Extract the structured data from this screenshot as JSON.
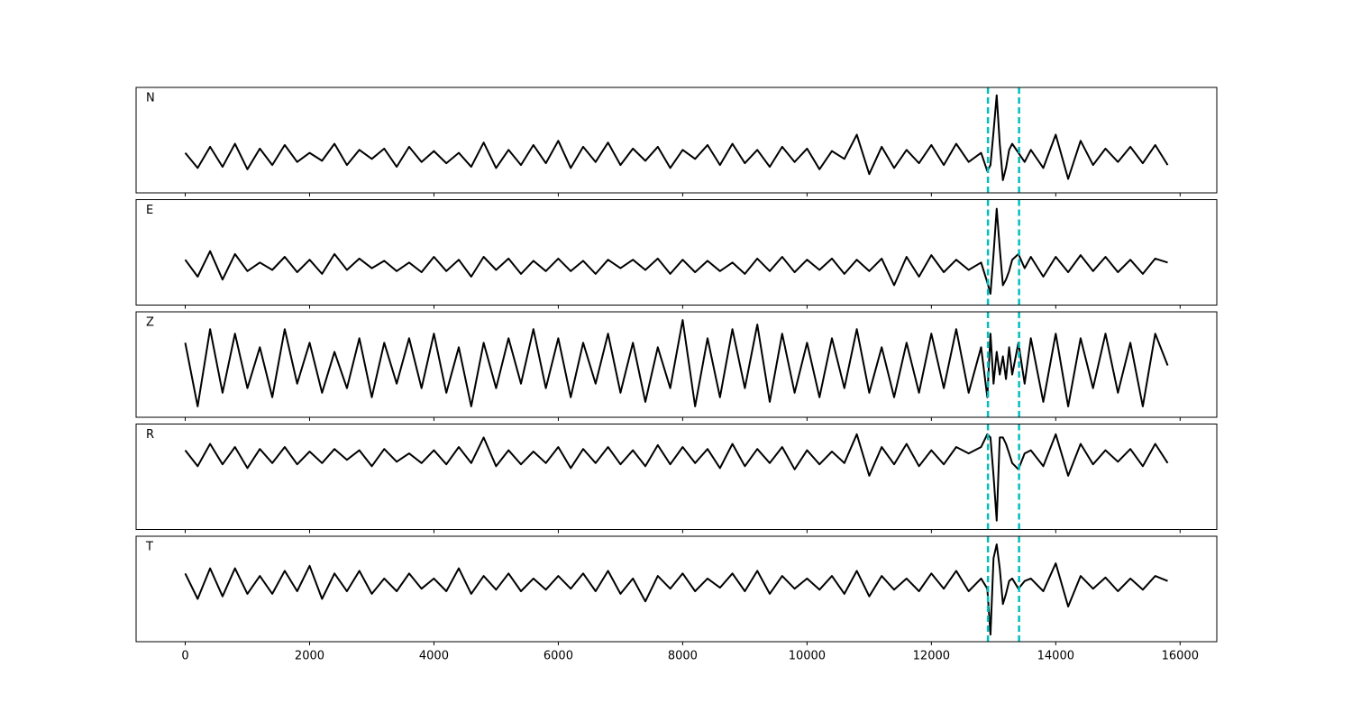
{
  "chart_data": [
    {
      "type": "line",
      "label": "N",
      "color": "#000000",
      "vline_color": "#00bfbf",
      "vlines": [
        12910,
        13410
      ],
      "xlim": [
        -790,
        16590
      ],
      "ylim": [
        -0.61,
        1.13
      ],
      "xticks": [
        0,
        2000,
        4000,
        6000,
        8000,
        10000,
        12000,
        14000,
        16000
      ],
      "x": [
        0,
        200,
        400,
        600,
        800,
        1000,
        1200,
        1400,
        1600,
        1800,
        2000,
        2200,
        2400,
        2600,
        2800,
        3000,
        3200,
        3400,
        3600,
        3800,
        4000,
        4200,
        4400,
        4600,
        4800,
        5000,
        5200,
        5400,
        5600,
        5800,
        6000,
        6200,
        6400,
        6600,
        6800,
        7000,
        7200,
        7400,
        7600,
        7800,
        8000,
        8200,
        8400,
        8600,
        8800,
        9000,
        9200,
        9400,
        9600,
        9800,
        10000,
        10200,
        10400,
        10600,
        10800,
        11000,
        11200,
        11400,
        11600,
        11800,
        12000,
        12200,
        12400,
        12600,
        12800,
        12900,
        12950,
        13000,
        13050,
        13100,
        13150,
        13200,
        13250,
        13300,
        13400,
        13500,
        13600,
        13800,
        14000,
        14200,
        14400,
        14600,
        14800,
        15000,
        15200,
        15400,
        15600,
        15800
      ],
      "values": [
        0.05,
        -0.2,
        0.15,
        -0.18,
        0.2,
        -0.22,
        0.12,
        -0.15,
        0.18,
        -0.1,
        0.05,
        -0.08,
        0.2,
        -0.15,
        0.1,
        -0.05,
        0.12,
        -0.18,
        0.15,
        -0.1,
        0.08,
        -0.12,
        0.05,
        -0.18,
        0.22,
        -0.2,
        0.1,
        -0.15,
        0.18,
        -0.12,
        0.25,
        -0.2,
        0.15,
        -0.1,
        0.22,
        -0.15,
        0.12,
        -0.08,
        0.15,
        -0.2,
        0.1,
        -0.05,
        0.18,
        -0.15,
        0.2,
        -0.12,
        0.1,
        -0.18,
        0.15,
        -0.1,
        0.12,
        -0.22,
        0.08,
        -0.05,
        0.35,
        -0.3,
        0.15,
        -0.2,
        0.1,
        -0.12,
        0.18,
        -0.15,
        0.2,
        -0.1,
        0.05,
        -0.25,
        -0.15,
        0.4,
        1.0,
        0.2,
        -0.4,
        -0.2,
        0.1,
        0.2,
        0.05,
        -0.1,
        0.1,
        -0.2,
        0.35,
        -0.38,
        0.25,
        -0.15,
        0.12,
        -0.1,
        0.15,
        -0.12,
        0.18,
        -0.15
      ]
    },
    {
      "type": "line",
      "label": "E",
      "color": "#000000",
      "vline_color": "#00bfbf",
      "vlines": [
        12910,
        13410
      ],
      "xlim": [
        -790,
        16590
      ],
      "ylim": [
        -0.7,
        1.16
      ],
      "xticks": [
        0,
        2000,
        4000,
        6000,
        8000,
        10000,
        12000,
        14000,
        16000
      ],
      "x": [
        0,
        200,
        400,
        600,
        800,
        1000,
        1200,
        1400,
        1600,
        1800,
        2000,
        2200,
        2400,
        2600,
        2800,
        3000,
        3200,
        3400,
        3600,
        3800,
        4000,
        4200,
        4400,
        4600,
        4800,
        5000,
        5200,
        5400,
        5600,
        5800,
        6000,
        6200,
        6400,
        6600,
        6800,
        7000,
        7200,
        7400,
        7600,
        7800,
        8000,
        8200,
        8400,
        8600,
        8800,
        9000,
        9200,
        9400,
        9600,
        9800,
        10000,
        10200,
        10400,
        10600,
        10800,
        11000,
        11200,
        11400,
        11600,
        11800,
        12000,
        12200,
        12400,
        12600,
        12800,
        12900,
        12950,
        13000,
        13050,
        13100,
        13150,
        13200,
        13250,
        13300,
        13400,
        13500,
        13600,
        13800,
        14000,
        14200,
        14400,
        14600,
        14800,
        15000,
        15200,
        15400,
        15600,
        15800
      ],
      "values": [
        0.1,
        -0.2,
        0.25,
        -0.25,
        0.2,
        -0.1,
        0.05,
        -0.08,
        0.15,
        -0.12,
        0.1,
        -0.15,
        0.2,
        -0.08,
        0.12,
        -0.05,
        0.08,
        -0.1,
        0.05,
        -0.12,
        0.15,
        -0.1,
        0.1,
        -0.2,
        0.15,
        -0.08,
        0.12,
        -0.15,
        0.08,
        -0.1,
        0.12,
        -0.1,
        0.08,
        -0.15,
        0.1,
        -0.05,
        0.1,
        -0.08,
        0.12,
        -0.15,
        0.1,
        -0.12,
        0.08,
        -0.1,
        0.05,
        -0.15,
        0.12,
        -0.1,
        0.15,
        -0.12,
        0.1,
        -0.08,
        0.12,
        -0.15,
        0.1,
        -0.1,
        0.12,
        -0.35,
        0.15,
        -0.2,
        0.18,
        -0.12,
        0.1,
        -0.08,
        0.05,
        -0.3,
        -0.5,
        0.2,
        1.0,
        0.3,
        -0.35,
        -0.25,
        -0.1,
        0.1,
        0.2,
        -0.05,
        0.15,
        -0.2,
        0.15,
        -0.12,
        0.18,
        -0.1,
        0.15,
        -0.12,
        0.1,
        -0.15,
        0.12,
        0.05
      ]
    },
    {
      "type": "line",
      "label": "Z",
      "color": "#000000",
      "vline_color": "#00bfbf",
      "vlines": [
        12910,
        13410
      ],
      "xlim": [
        -790,
        16590
      ],
      "ylim": [
        -1.14,
        1.18
      ],
      "xticks": [
        0,
        2000,
        4000,
        6000,
        8000,
        10000,
        12000,
        14000,
        16000
      ],
      "x": [
        0,
        200,
        400,
        600,
        800,
        1000,
        1200,
        1400,
        1600,
        1800,
        2000,
        2200,
        2400,
        2600,
        2800,
        3000,
        3200,
        3400,
        3600,
        3800,
        4000,
        4200,
        4400,
        4600,
        4800,
        5000,
        5200,
        5400,
        5600,
        5800,
        6000,
        6200,
        6400,
        6600,
        6800,
        7000,
        7200,
        7400,
        7600,
        7800,
        8000,
        8200,
        8400,
        8600,
        8800,
        9000,
        9200,
        9400,
        9600,
        9800,
        10000,
        10200,
        10400,
        10600,
        10800,
        11000,
        11200,
        11400,
        11600,
        11800,
        12000,
        12200,
        12400,
        12600,
        12800,
        12900,
        12950,
        13000,
        13050,
        13100,
        13150,
        13200,
        13250,
        13300,
        13400,
        13500,
        13600,
        13800,
        14000,
        14200,
        14400,
        14600,
        14800,
        15000,
        15200,
        15400,
        15600,
        15800
      ],
      "values": [
        0.5,
        -0.9,
        0.8,
        -0.6,
        0.7,
        -0.5,
        0.4,
        -0.7,
        0.8,
        -0.4,
        0.5,
        -0.6,
        0.3,
        -0.5,
        0.6,
        -0.7,
        0.5,
        -0.4,
        0.6,
        -0.5,
        0.7,
        -0.6,
        0.4,
        -0.9,
        0.5,
        -0.5,
        0.6,
        -0.4,
        0.8,
        -0.5,
        0.6,
        -0.7,
        0.5,
        -0.4,
        0.7,
        -0.6,
        0.5,
        -0.8,
        0.4,
        -0.5,
        1.0,
        -0.9,
        0.6,
        -0.7,
        0.8,
        -0.5,
        0.9,
        -0.8,
        0.7,
        -0.6,
        0.5,
        -0.7,
        0.6,
        -0.5,
        0.8,
        -0.6,
        0.4,
        -0.7,
        0.5,
        -0.6,
        0.7,
        -0.5,
        0.8,
        -0.6,
        0.4,
        -0.7,
        0.7,
        -0.4,
        0.3,
        -0.2,
        0.2,
        -0.3,
        0.4,
        -0.2,
        0.5,
        -0.4,
        0.6,
        -0.8,
        0.7,
        -0.9,
        0.6,
        -0.5,
        0.7,
        -0.6,
        0.5,
        -0.9,
        0.7,
        0.0
      ]
    },
    {
      "type": "line",
      "label": "R",
      "color": "#000000",
      "vline_color": "#00bfbf",
      "vlines": [
        12910,
        13410
      ],
      "xlim": [
        -790,
        16590
      ],
      "ylim": [
        -1.14,
        0.51
      ],
      "xticks": [
        0,
        2000,
        4000,
        6000,
        8000,
        10000,
        12000,
        14000,
        16000
      ],
      "x": [
        0,
        200,
        400,
        600,
        800,
        1000,
        1200,
        1400,
        1600,
        1800,
        2000,
        2200,
        2400,
        2600,
        2800,
        3000,
        3200,
        3400,
        3600,
        3800,
        4000,
        4200,
        4400,
        4600,
        4800,
        5000,
        5200,
        5400,
        5600,
        5800,
        6000,
        6200,
        6400,
        6600,
        6800,
        7000,
        7200,
        7400,
        7600,
        7800,
        8000,
        8200,
        8400,
        8600,
        8800,
        9000,
        9200,
        9400,
        9600,
        9800,
        10000,
        10200,
        10400,
        10600,
        10800,
        11000,
        11200,
        11400,
        11600,
        11800,
        12000,
        12200,
        12400,
        12600,
        12800,
        12900,
        12950,
        13000,
        13050,
        13100,
        13150,
        13200,
        13250,
        13300,
        13400,
        13500,
        13600,
        13800,
        14000,
        14200,
        14400,
        14600,
        14800,
        15000,
        15200,
        15400,
        15600,
        15800
      ],
      "values": [
        0.1,
        -0.15,
        0.2,
        -0.12,
        0.15,
        -0.18,
        0.12,
        -0.1,
        0.15,
        -0.12,
        0.08,
        -0.1,
        0.12,
        -0.05,
        0.1,
        -0.15,
        0.12,
        -0.08,
        0.05,
        -0.1,
        0.1,
        -0.12,
        0.15,
        -0.1,
        0.3,
        -0.15,
        0.1,
        -0.12,
        0.08,
        -0.1,
        0.15,
        -0.18,
        0.12,
        -0.1,
        0.15,
        -0.12,
        0.1,
        -0.15,
        0.18,
        -0.12,
        0.15,
        -0.1,
        0.12,
        -0.18,
        0.2,
        -0.15,
        0.12,
        -0.1,
        0.15,
        -0.2,
        0.1,
        -0.12,
        0.08,
        -0.1,
        0.35,
        -0.3,
        0.15,
        -0.12,
        0.2,
        -0.15,
        0.1,
        -0.12,
        0.15,
        0.05,
        0.15,
        0.35,
        0.3,
        -0.3,
        -1.0,
        0.3,
        0.3,
        0.2,
        0.05,
        -0.1,
        -0.2,
        0.05,
        0.1,
        -0.15,
        0.35,
        -0.3,
        0.2,
        -0.12,
        0.1,
        -0.08,
        0.12,
        -0.15,
        0.2,
        -0.1
      ]
    },
    {
      "type": "line",
      "label": "T",
      "color": "#000000",
      "vline_color": "#00bfbf",
      "vlines": [
        12910,
        13410
      ],
      "xlim": [
        -790,
        16590
      ],
      "ylim": [
        -1.14,
        0.93
      ],
      "xticks": [
        0,
        2000,
        4000,
        6000,
        8000,
        10000,
        12000,
        14000,
        16000
      ],
      "x": [
        0,
        200,
        400,
        600,
        800,
        1000,
        1200,
        1400,
        1600,
        1800,
        2000,
        2200,
        2400,
        2600,
        2800,
        3000,
        3200,
        3400,
        3600,
        3800,
        4000,
        4200,
        4400,
        4600,
        4800,
        5000,
        5200,
        5400,
        5600,
        5800,
        6000,
        6200,
        6400,
        6600,
        6800,
        7000,
        7200,
        7400,
        7600,
        7800,
        8000,
        8200,
        8400,
        8600,
        8800,
        9000,
        9200,
        9400,
        9600,
        9800,
        10000,
        10200,
        10400,
        10600,
        10800,
        11000,
        11200,
        11400,
        11600,
        11800,
        12000,
        12200,
        12400,
        12600,
        12800,
        12900,
        12950,
        13000,
        13050,
        13100,
        13150,
        13200,
        13250,
        13300,
        13400,
        13500,
        13600,
        13800,
        14000,
        14200,
        14400,
        14600,
        14800,
        15000,
        15200,
        15400,
        15600,
        15800
      ],
      "values": [
        0.2,
        -0.3,
        0.3,
        -0.25,
        0.3,
        -0.2,
        0.15,
        -0.2,
        0.25,
        -0.15,
        0.35,
        -0.3,
        0.2,
        -0.15,
        0.25,
        -0.2,
        0.1,
        -0.15,
        0.2,
        -0.1,
        0.1,
        -0.15,
        0.3,
        -0.2,
        0.15,
        -0.12,
        0.2,
        -0.15,
        0.1,
        -0.12,
        0.15,
        -0.1,
        0.2,
        -0.15,
        0.25,
        -0.2,
        0.1,
        -0.35,
        0.15,
        -0.1,
        0.2,
        -0.15,
        0.1,
        -0.08,
        0.2,
        -0.15,
        0.25,
        -0.2,
        0.15,
        -0.1,
        0.1,
        -0.12,
        0.15,
        -0.2,
        0.25,
        -0.25,
        0.15,
        -0.12,
        0.1,
        -0.15,
        0.2,
        -0.1,
        0.25,
        -0.15,
        0.1,
        -0.1,
        -1.0,
        0.5,
        0.77,
        0.3,
        -0.4,
        -0.2,
        0.05,
        0.1,
        -0.1,
        0.05,
        0.1,
        -0.15,
        0.4,
        -0.45,
        0.15,
        -0.1,
        0.12,
        -0.15,
        0.1,
        -0.12,
        0.15,
        0.05
      ]
    }
  ]
}
